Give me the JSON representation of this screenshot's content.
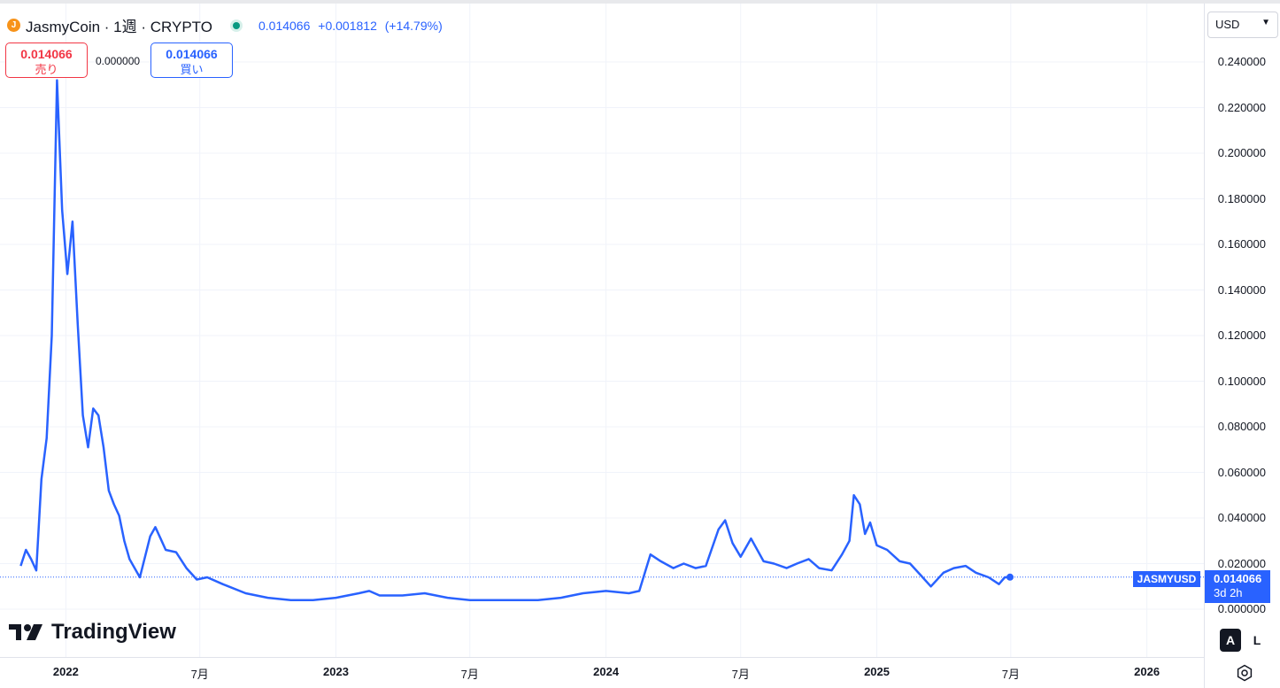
{
  "legend": {
    "title": "JasmyCoin · 1週 · CRYPTO",
    "icon": "jasmycoin-logo-icon",
    "status": "market-open-dot",
    "last": "0.014066",
    "change": "+0.001812",
    "change_pct": "(+14.79%)"
  },
  "order": {
    "sell_price": "0.014066",
    "sell_label": "売り",
    "spread": "0.000000",
    "buy_price": "0.014066",
    "buy_label": "買い"
  },
  "currency": {
    "value": "USD",
    "icon": "chevron-down-icon"
  },
  "price_tag": {
    "symbol": "JASMYUSD",
    "price": "0.014066",
    "countdown": "3d 2h"
  },
  "brand": {
    "name": "TradingView",
    "icon": "tradingview-logo-icon"
  },
  "scale_buttons": {
    "auto": "A",
    "log": "L"
  },
  "settings_icon": "gear-icon",
  "colors": {
    "line": "#2962ff",
    "sell": "#f23645",
    "buy": "#2962ff",
    "status": "#089981",
    "coin": "#f7931a"
  },
  "chart_data": {
    "type": "line",
    "series": [
      {
        "name": "JASMYUSD"
      }
    ],
    "x": [
      "2021-11-01",
      "2021-11-08",
      "2021-11-15",
      "2021-11-22",
      "2021-11-29",
      "2021-12-06",
      "2021-12-13",
      "2021-12-20",
      "2021-12-27",
      "2022-01-03",
      "2022-01-10",
      "2022-01-17",
      "2022-01-24",
      "2022-01-31",
      "2022-02-07",
      "2022-02-14",
      "2022-02-21",
      "2022-02-28",
      "2022-03-07",
      "2022-03-14",
      "2022-03-21",
      "2022-03-28",
      "2022-04-04",
      "2022-04-11",
      "2022-04-25",
      "2022-05-02",
      "2022-05-09",
      "2022-05-16",
      "2022-05-30",
      "2022-06-13",
      "2022-06-27",
      "2022-07-11",
      "2022-08-01",
      "2022-09-01",
      "2022-10-01",
      "2022-11-01",
      "2022-12-01",
      "2023-01-01",
      "2023-02-01",
      "2023-02-15",
      "2023-03-01",
      "2023-04-01",
      "2023-05-01",
      "2023-06-01",
      "2023-07-01",
      "2023-08-01",
      "2023-09-01",
      "2023-10-01",
      "2023-11-01",
      "2023-12-01",
      "2024-01-01",
      "2024-02-01",
      "2024-02-15",
      "2024-03-01",
      "2024-03-15",
      "2024-04-01",
      "2024-04-15",
      "2024-05-01",
      "2024-05-15",
      "2024-06-01",
      "2024-06-10",
      "2024-06-20",
      "2024-07-01",
      "2024-07-15",
      "2024-08-01",
      "2024-08-15",
      "2024-09-01",
      "2024-09-15",
      "2024-10-01",
      "2024-10-15",
      "2024-11-01",
      "2024-11-15",
      "2024-11-25",
      "2024-12-01",
      "2024-12-09",
      "2024-12-16",
      "2024-12-23",
      "2025-01-01",
      "2025-01-15",
      "2025-02-01",
      "2025-02-15",
      "2025-03-01",
      "2025-03-15",
      "2025-04-01",
      "2025-04-15",
      "2025-05-01",
      "2025-05-15",
      "2025-06-01",
      "2025-06-15",
      "2025-06-23",
      "2025-06-30"
    ],
    "values": [
      0.019,
      0.026,
      0.022,
      0.017,
      0.057,
      0.075,
      0.12,
      0.232,
      0.175,
      0.147,
      0.17,
      0.125,
      0.085,
      0.071,
      0.088,
      0.085,
      0.071,
      0.052,
      0.046,
      0.041,
      0.03,
      0.022,
      0.018,
      0.014,
      0.032,
      0.036,
      0.031,
      0.026,
      0.025,
      0.018,
      0.013,
      0.014,
      0.011,
      0.007,
      0.005,
      0.004,
      0.004,
      0.005,
      0.007,
      0.008,
      0.006,
      0.006,
      0.007,
      0.005,
      0.004,
      0.004,
      0.004,
      0.004,
      0.005,
      0.007,
      0.008,
      0.007,
      0.008,
      0.024,
      0.021,
      0.018,
      0.02,
      0.018,
      0.019,
      0.035,
      0.039,
      0.029,
      0.023,
      0.031,
      0.021,
      0.02,
      0.018,
      0.02,
      0.022,
      0.018,
      0.017,
      0.024,
      0.03,
      0.05,
      0.046,
      0.033,
      0.038,
      0.028,
      0.026,
      0.021,
      0.02,
      0.015,
      0.01,
      0.016,
      0.018,
      0.019,
      0.016,
      0.014,
      0.011,
      0.014,
      0.014066
    ],
    "last_point": {
      "x": "2025-06-30",
      "y": 0.014066
    },
    "yticks": [
      "0.000000",
      "0.020000",
      "0.040000",
      "0.060000",
      "0.080000",
      "0.100000",
      "0.120000",
      "0.140000",
      "0.160000",
      "0.180000",
      "0.200000",
      "0.220000",
      "0.240000"
    ],
    "xticks": [
      {
        "label": "2022",
        "x": "2022-01-01",
        "bold": true
      },
      {
        "label": "7月",
        "x": "2022-07-01",
        "bold": false
      },
      {
        "label": "2023",
        "x": "2023-01-01",
        "bold": true
      },
      {
        "label": "7月",
        "x": "2023-07-01",
        "bold": false
      },
      {
        "label": "2024",
        "x": "2024-01-01",
        "bold": true
      },
      {
        "label": "7月",
        "x": "2024-07-01",
        "bold": false
      },
      {
        "label": "2025",
        "x": "2025-01-01",
        "bold": true
      },
      {
        "label": "7月",
        "x": "2025-07-01",
        "bold": false
      },
      {
        "label": "2026",
        "x": "2026-01-01",
        "bold": true
      }
    ],
    "ylim": [
      0,
      0.24
    ],
    "xlim": [
      "2021-10-04",
      "2026-03-19"
    ],
    "grid": true
  }
}
